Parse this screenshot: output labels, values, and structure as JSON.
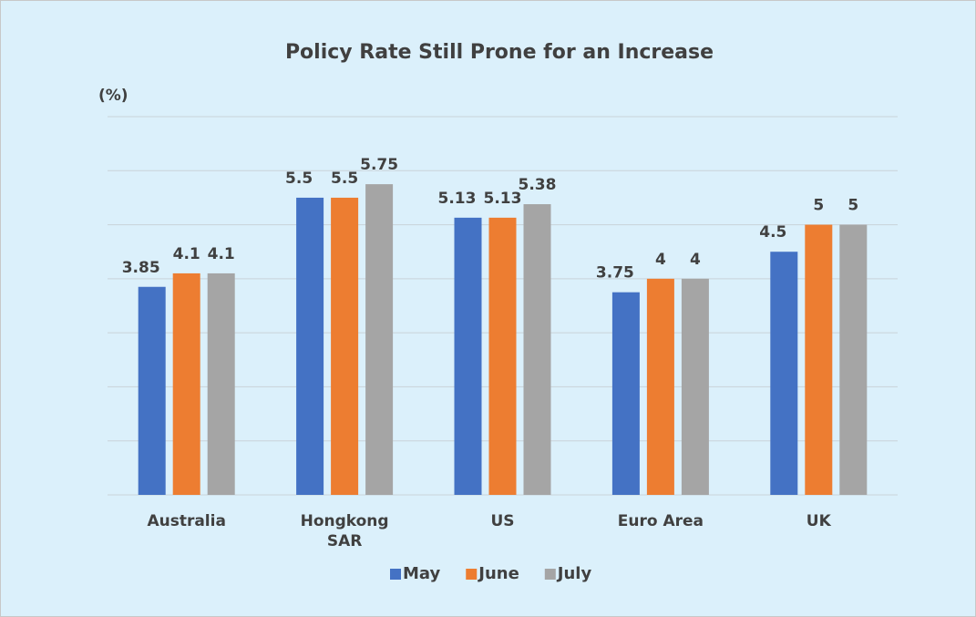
{
  "chart_data": {
    "type": "bar",
    "title": "Policy Rate Still Prone for an Increase",
    "y_label": "(%)",
    "categories": [
      "Australia",
      "Hongkong SAR",
      "US",
      "Euro Area",
      "UK"
    ],
    "series": [
      {
        "name": "May",
        "color": "#4472c4",
        "values": [
          3.85,
          5.5,
          5.13,
          3.75,
          4.5
        ]
      },
      {
        "name": "June",
        "color": "#ed7d31",
        "values": [
          4.1,
          5.5,
          5.13,
          4,
          5
        ]
      },
      {
        "name": "July",
        "color": "#a5a5a5",
        "values": [
          4.1,
          5.75,
          5.38,
          4,
          5
        ]
      }
    ],
    "ylim": [
      0,
      7
    ],
    "yticks": [
      0,
      1,
      2,
      3,
      4,
      5,
      6,
      7
    ],
    "grid": true,
    "legend": "bottom"
  }
}
